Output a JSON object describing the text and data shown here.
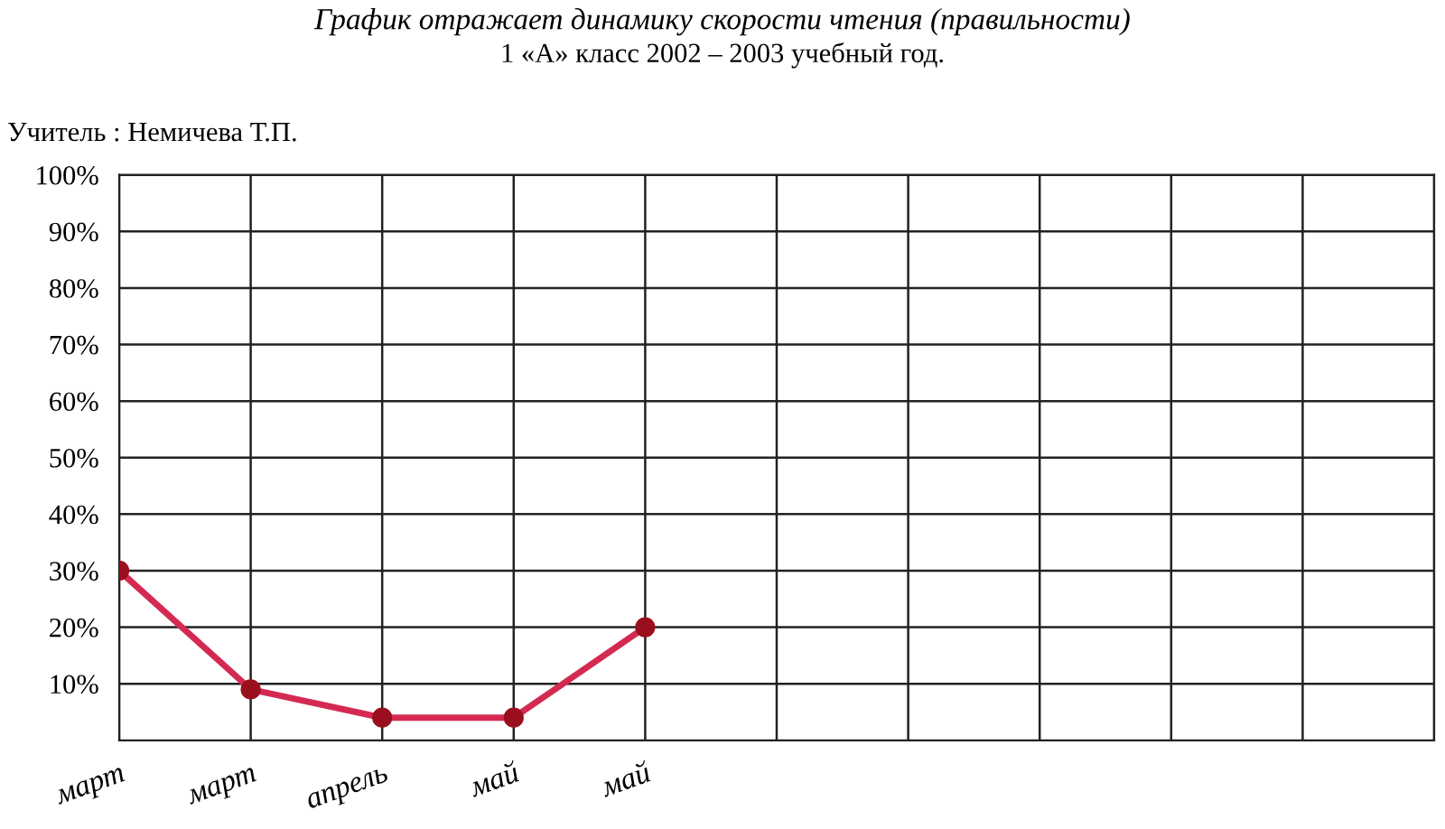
{
  "chart_data": {
    "type": "line",
    "title": "График отражает динамику скорости чтения (правильности)",
    "subtitle": "1 «А» класс 2002 – 2003 учебный год.",
    "annotations": [
      "Учитель : Немичева Т.П."
    ],
    "categories": [
      "март",
      "март",
      "апрель",
      "май",
      "май",
      null,
      null,
      null,
      null,
      null,
      null
    ],
    "series": [
      {
        "color": "#d42a52",
        "values": [
          30,
          9,
          4,
          4,
          20,
          null,
          null,
          null,
          null,
          null,
          null
        ]
      }
    ],
    "ylim": [
      0,
      100
    ],
    "yticks": [
      {
        "value": 10,
        "label": "10%"
      },
      {
        "value": 20,
        "label": "20%"
      },
      {
        "value": 30,
        "label": "30%"
      },
      {
        "value": 40,
        "label": "40%"
      },
      {
        "value": 50,
        "label": "50%"
      },
      {
        "value": 60,
        "label": "60%"
      },
      {
        "value": 70,
        "label": "70%"
      },
      {
        "value": 80,
        "label": "80%"
      },
      {
        "value": 90,
        "label": "90%"
      },
      {
        "value": 100,
        "label": "100%"
      }
    ],
    "grid": true,
    "marker": "circle",
    "line_style": "solid"
  }
}
